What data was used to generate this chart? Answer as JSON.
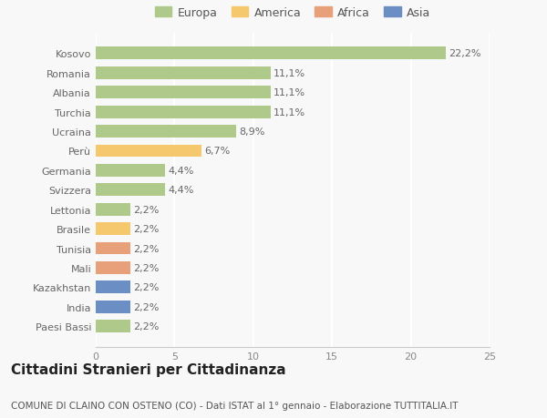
{
  "countries": [
    "Kosovo",
    "Romania",
    "Albania",
    "Turchia",
    "Ucraina",
    "Perù",
    "Germania",
    "Svizzera",
    "Lettonia",
    "Brasile",
    "Tunisia",
    "Mali",
    "Kazakhstan",
    "India",
    "Paesi Bassi"
  ],
  "values": [
    22.2,
    11.1,
    11.1,
    11.1,
    8.9,
    6.7,
    4.4,
    4.4,
    2.2,
    2.2,
    2.2,
    2.2,
    2.2,
    2.2,
    2.2
  ],
  "labels": [
    "22,2%",
    "11,1%",
    "11,1%",
    "11,1%",
    "8,9%",
    "6,7%",
    "4,4%",
    "4,4%",
    "2,2%",
    "2,2%",
    "2,2%",
    "2,2%",
    "2,2%",
    "2,2%",
    "2,2%"
  ],
  "colors": [
    "#aec98a",
    "#aec98a",
    "#aec98a",
    "#aec98a",
    "#aec98a",
    "#f5c86e",
    "#aec98a",
    "#aec98a",
    "#aec98a",
    "#f5c86e",
    "#e8a07a",
    "#e8a07a",
    "#6b8ec4",
    "#6b8ec4",
    "#aec98a"
  ],
  "legend_labels": [
    "Europa",
    "America",
    "Africa",
    "Asia"
  ],
  "legend_colors": [
    "#aec98a",
    "#f5c86e",
    "#e8a07a",
    "#6b8ec4"
  ],
  "xlim": [
    0,
    25
  ],
  "xticks": [
    0,
    5,
    10,
    15,
    20,
    25
  ],
  "title": "Cittadini Stranieri per Cittadinanza",
  "subtitle": "COMUNE DI CLAINO CON OSTENO (CO) - Dati ISTAT al 1° gennaio - Elaborazione TUTTITALIA.IT",
  "bg_color": "#f8f8f8",
  "bar_height": 0.65,
  "label_fontsize": 8,
  "axis_fontsize": 8,
  "title_fontsize": 11,
  "subtitle_fontsize": 7.5
}
